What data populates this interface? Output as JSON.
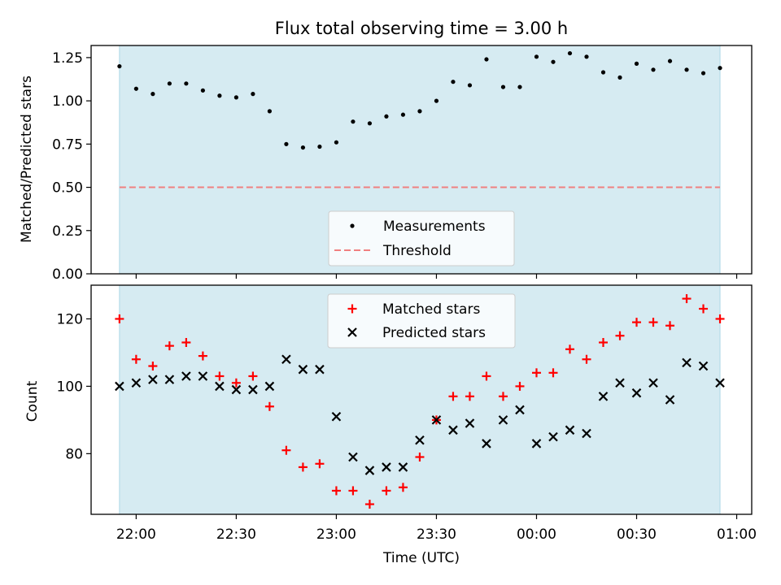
{
  "chart_data": {
    "type": "scatter",
    "title": "Flux total observing time = 3.00 h",
    "xlabel": "Time (UTC)",
    "x_ticks": [
      "22:00",
      "22:30",
      "23:00",
      "23:30",
      "00:00",
      "00:30",
      "01:00"
    ],
    "x_tick_minutes": [
      0,
      30,
      60,
      90,
      120,
      150,
      180
    ],
    "times_minutes": [
      -5,
      0,
      5,
      10,
      15,
      20,
      25,
      30,
      35,
      40,
      45,
      50,
      55,
      60,
      65,
      70,
      75,
      80,
      85,
      90,
      95,
      100,
      105,
      110,
      115,
      120,
      125,
      130,
      135,
      140,
      145,
      150,
      155,
      160,
      165,
      170,
      175
    ],
    "shaded_span_minutes": [
      -5,
      175
    ],
    "xlim_minutes": [
      -13.5,
      184.5
    ],
    "top": {
      "ylabel": "Matched/Predicted stars",
      "ylim": [
        0,
        1.32
      ],
      "yticks": [
        "0.00",
        "0.25",
        "0.50",
        "0.75",
        "1.00",
        "1.25"
      ],
      "threshold": 0.5,
      "legend_location": "lower center",
      "series": [
        {
          "name": "Measurements",
          "values": [
            1.2,
            1.07,
            1.04,
            1.1,
            1.1,
            1.06,
            1.03,
            1.02,
            1.04,
            0.94,
            0.75,
            0.73,
            0.735,
            0.76,
            0.88,
            0.87,
            0.91,
            0.92,
            0.94,
            1.0,
            1.11,
            1.09,
            1.24,
            1.08,
            1.08,
            1.255,
            1.225,
            1.275,
            1.255,
            1.165,
            1.135,
            1.215,
            1.18,
            1.23,
            1.18,
            1.16,
            1.19
          ]
        },
        {
          "name": "Threshold",
          "values": [
            0.5
          ]
        }
      ]
    },
    "bottom": {
      "ylabel": "Count",
      "ylim": [
        62,
        130
      ],
      "yticks": [
        "80",
        "100",
        "120"
      ],
      "legend_location": "upper center",
      "series": [
        {
          "name": "Matched stars",
          "values": [
            120,
            108,
            106,
            112,
            113,
            109,
            103,
            101,
            103,
            94,
            81,
            76,
            77,
            69,
            69,
            65,
            69,
            70,
            79,
            90,
            97,
            97,
            103,
            97,
            100,
            104,
            104,
            111,
            108,
            113,
            115,
            119,
            119,
            118,
            126,
            123,
            120
          ]
        },
        {
          "name": "Predicted stars",
          "values": [
            100,
            101,
            102,
            102,
            103,
            103,
            100,
            99,
            99,
            100,
            108,
            105,
            105,
            91,
            79,
            75,
            76,
            76,
            84,
            90,
            87,
            89,
            83,
            90,
            93,
            83,
            85,
            87,
            86,
            97,
            101,
            98,
            101,
            96,
            107,
            106,
            101
          ]
        }
      ]
    },
    "colors": {
      "shade": "#add8e6",
      "measurements": "#000000",
      "threshold": "#f08080",
      "matched": "#ff0000",
      "predicted": "#000000"
    }
  }
}
